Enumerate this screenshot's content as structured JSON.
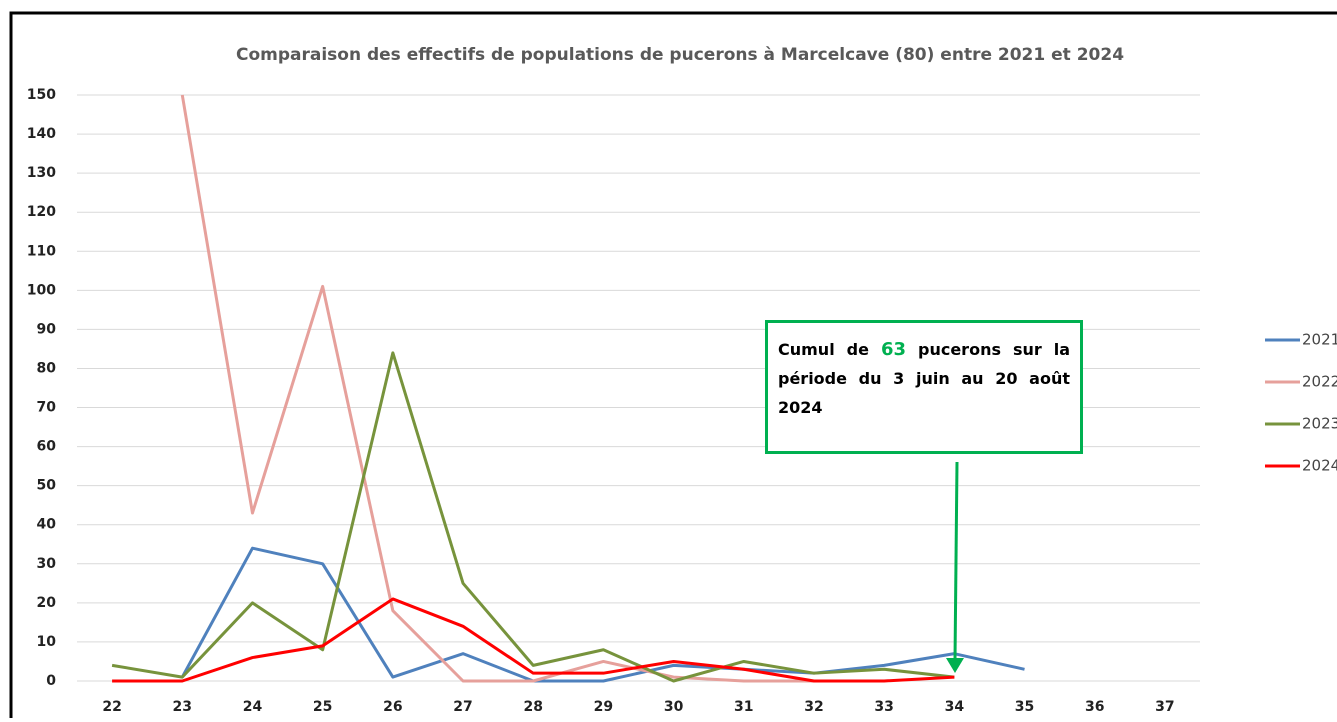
{
  "chart_data": {
    "type": "line",
    "title": "Comparaison des effectifs de populations de pucerons à Marcelcave (80) entre 2021 et 2024",
    "categories": [
      "22",
      "23",
      "24",
      "25",
      "26",
      "27",
      "28",
      "29",
      "30",
      "31",
      "32",
      "33",
      "34",
      "35",
      "36",
      "37"
    ],
    "series": [
      {
        "name": "2021",
        "color": "#4f81bd",
        "values": [
          null,
          1,
          34,
          30,
          1,
          7,
          0,
          0,
          4,
          3,
          2,
          4,
          7,
          3,
          null,
          null
        ]
      },
      {
        "name": "2022",
        "color": "#e6a09b",
        "values": [
          null,
          150,
          43,
          101,
          18,
          0,
          0,
          5,
          1,
          0,
          0,
          0,
          null,
          null,
          null,
          null
        ]
      },
      {
        "name": "2023",
        "color": "#77933c",
        "values": [
          4,
          1,
          20,
          8,
          84,
          25,
          4,
          8,
          0,
          5,
          2,
          3,
          1,
          null,
          null,
          null
        ]
      },
      {
        "name": "2024",
        "color": "#ff0000",
        "values": [
          0,
          0,
          6,
          9,
          21,
          14,
          2,
          2,
          5,
          3,
          0,
          0,
          1,
          null,
          null,
          null
        ]
      }
    ],
    "ylim": [
      0,
      150
    ],
    "yticks": [
      0,
      10,
      20,
      30,
      40,
      50,
      60,
      70,
      80,
      90,
      100,
      110,
      120,
      130,
      140,
      150
    ],
    "grid": true,
    "legend": "right",
    "annotation": {
      "before": "Cumul de",
      "number": "63",
      "after": "pucerons sur la période du 3 juin au 20 août 2024",
      "color": "#00b050"
    }
  }
}
